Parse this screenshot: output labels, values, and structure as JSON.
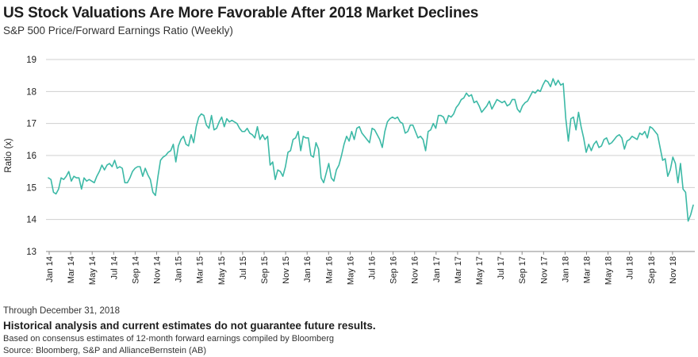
{
  "header": {
    "title": "US Stock Valuations Are More Favorable After 2018 Market Declines",
    "subtitle": "S&P 500 Price/Forward Earnings Ratio (Weekly)"
  },
  "footer": {
    "through": "Through December 31, 2018",
    "disclaimer": "Historical analysis and current estimates do not guarantee future results.",
    "basis": "Based on consensus estimates of 12-month forward earnings compiled by Bloomberg",
    "source": "Source: Bloomberg, S&P and AllianceBernstein (AB)"
  },
  "colors": {
    "line": "#3cb9a6",
    "grid": "#cfcfcf",
    "axis": "#8a8a8a",
    "text": "#1e1e1e"
  },
  "chart_data": {
    "type": "line",
    "title": "US Stock Valuations Are More Favorable After 2018 Market Declines",
    "subtitle": "S&P 500 Price/Forward Earnings Ratio (Weekly)",
    "xlabel": "",
    "ylabel": "Ratio (x)",
    "ylim": [
      13,
      19
    ],
    "yticks": [
      13,
      14,
      15,
      16,
      17,
      18,
      19
    ],
    "xlim": [
      "2014-01-03",
      "2018-12-28"
    ],
    "xtick_labels": [
      "Jan 14",
      "Mar 14",
      "May 14",
      "Jul 14",
      "Sep 14",
      "Nov 14",
      "Jan 15",
      "Mar 15",
      "May 15",
      "Jul 15",
      "Sep 15",
      "Nov 15",
      "Jan 16",
      "Mar 16",
      "May 16",
      "Jul 16",
      "Sep 16",
      "Nov 16",
      "Jan 17",
      "Mar 17",
      "May 17",
      "Jul 17",
      "Sep 17",
      "Nov 17",
      "Jan 18",
      "Mar 18",
      "May 18",
      "Jul 18",
      "Sep 18",
      "Nov 18"
    ],
    "grid": true,
    "legend": "none",
    "series": [
      {
        "values": [
          15.3,
          15.25,
          14.85,
          14.8,
          14.95,
          15.3,
          15.25,
          15.35,
          15.5,
          15.2,
          15.35,
          15.3,
          15.3,
          14.95,
          15.3,
          15.2,
          15.25,
          15.2,
          15.15,
          15.35,
          15.5,
          15.7,
          15.55,
          15.7,
          15.75,
          15.65,
          15.85,
          15.6,
          15.65,
          15.6,
          15.15,
          15.15,
          15.3,
          15.5,
          15.6,
          15.65,
          15.65,
          15.35,
          15.6,
          15.4,
          15.25,
          14.85,
          14.75,
          15.35,
          15.85,
          15.95,
          16.0,
          16.1,
          16.15,
          16.35,
          15.8,
          16.3,
          16.5,
          16.6,
          16.35,
          16.3,
          16.65,
          16.4,
          16.9,
          17.2,
          17.3,
          17.25,
          16.95,
          16.85,
          17.25,
          16.8,
          16.85,
          17.05,
          17.2,
          16.9,
          17.15,
          17.05,
          17.1,
          17.05,
          17.0,
          16.85,
          16.75,
          16.75,
          16.85,
          16.7,
          16.65,
          16.55,
          16.9,
          16.5,
          16.65,
          16.5,
          16.6,
          15.7,
          15.8,
          15.25,
          15.55,
          15.5,
          15.35,
          15.65,
          16.1,
          16.15,
          16.5,
          16.55,
          16.75,
          16.15,
          16.6,
          16.55,
          16.55,
          16.0,
          15.95,
          16.4,
          16.2,
          15.3,
          15.15,
          15.45,
          15.75,
          15.3,
          15.2,
          15.55,
          15.7,
          16.0,
          16.35,
          16.6,
          16.45,
          16.75,
          16.5,
          16.85,
          16.9,
          16.7,
          16.6,
          16.5,
          16.4,
          16.85,
          16.8,
          16.65,
          16.5,
          16.25,
          16.75,
          17.05,
          17.15,
          17.2,
          17.15,
          17.2,
          17.05,
          17.0,
          16.7,
          16.75,
          16.95,
          16.95,
          16.75,
          16.55,
          16.6,
          16.5,
          16.15,
          16.75,
          16.8,
          17.0,
          16.85,
          17.25,
          17.25,
          17.2,
          17.0,
          17.25,
          17.2,
          17.3,
          17.5,
          17.6,
          17.75,
          17.8,
          17.95,
          17.85,
          17.9,
          17.65,
          17.7,
          17.55,
          17.35,
          17.45,
          17.55,
          17.7,
          17.45,
          17.6,
          17.75,
          17.7,
          17.65,
          17.7,
          17.55,
          17.6,
          17.75,
          17.75,
          17.45,
          17.35,
          17.55,
          17.65,
          17.7,
          17.85,
          18.0,
          17.95,
          18.05,
          18.0,
          18.2,
          18.35,
          18.3,
          18.15,
          18.4,
          18.2,
          18.35,
          18.2,
          18.25,
          17.15,
          16.45,
          17.15,
          17.2,
          16.8,
          17.35,
          16.9,
          16.55,
          16.1,
          16.35,
          16.15,
          16.35,
          16.45,
          16.25,
          16.3,
          16.5,
          16.55,
          16.35,
          16.4,
          16.5,
          16.6,
          16.65,
          16.55,
          16.2,
          16.45,
          16.5,
          16.6,
          16.55,
          16.5,
          16.7,
          16.65,
          16.75,
          16.55,
          16.9,
          16.85,
          16.75,
          16.65,
          16.25,
          15.85,
          15.9,
          15.35,
          15.55,
          15.95,
          15.75,
          15.15,
          15.75,
          14.95,
          14.85,
          13.95,
          14.15,
          14.45
        ]
      }
    ]
  }
}
